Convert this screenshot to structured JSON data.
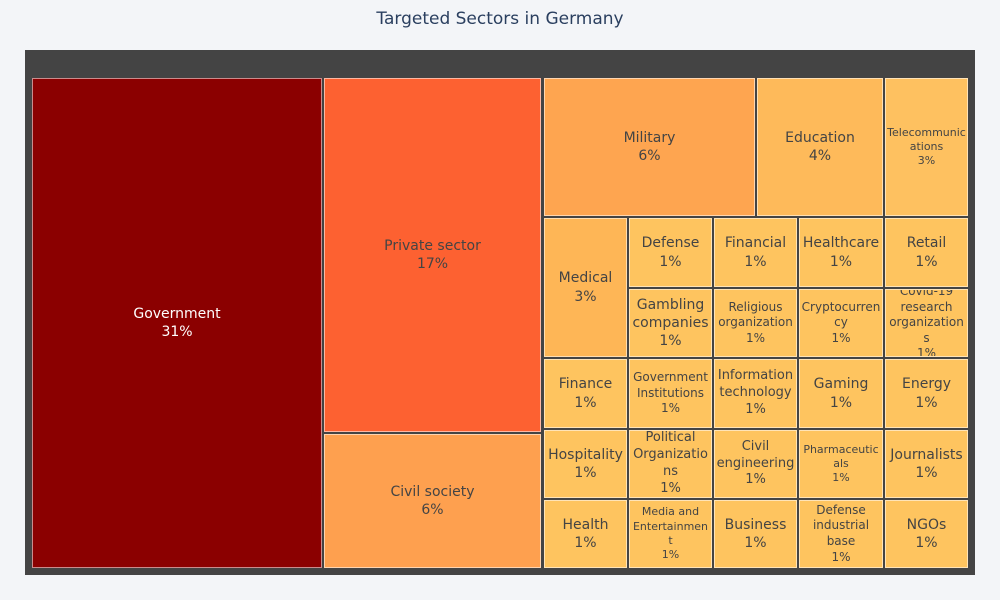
{
  "chart_data": {
    "type": "treemap",
    "title": "Targeted Sectors in Germany",
    "root_color": "#444444",
    "items": [
      {
        "label": "Government",
        "pct": "31%",
        "color": "#8b0000"
      },
      {
        "label": "Private sector",
        "pct": "17%",
        "color": "#fd6131"
      },
      {
        "label": "Civil society",
        "pct": "6%",
        "color": "#fea04f"
      },
      {
        "label": "Military",
        "pct": "6%",
        "color": "#fea550"
      },
      {
        "label": "Education",
        "pct": "4%",
        "color": "#feba5a"
      },
      {
        "label": "Telecommunications",
        "pct": "3%",
        "color": "#fec160"
      },
      {
        "label": "Medical",
        "pct": "3%",
        "color": "#feb656"
      },
      {
        "label": "Defense",
        "pct": "1%",
        "color": "#fec45f"
      },
      {
        "label": "Financial",
        "pct": "1%",
        "color": "#fec45f"
      },
      {
        "label": "Healthcare",
        "pct": "1%",
        "color": "#fec45f"
      },
      {
        "label": "Retail",
        "pct": "1%",
        "color": "#fec45f"
      },
      {
        "label": "Gambling companies",
        "pct": "1%",
        "color": "#fec45f"
      },
      {
        "label": "Religious organization",
        "pct": "1%",
        "color": "#fec45f"
      },
      {
        "label": "Cryptocurrency",
        "pct": "1%",
        "color": "#fec45f"
      },
      {
        "label": "Covid-19 research organizations",
        "pct": "1%",
        "color": "#fec45f"
      },
      {
        "label": "Finance",
        "pct": "1%",
        "color": "#fec45f"
      },
      {
        "label": "Government Institutions",
        "pct": "1%",
        "color": "#fec45f"
      },
      {
        "label": "Information technology",
        "pct": "1%",
        "color": "#fec45f"
      },
      {
        "label": "Gaming",
        "pct": "1%",
        "color": "#fec45f"
      },
      {
        "label": "Energy",
        "pct": "1%",
        "color": "#fec45f"
      },
      {
        "label": "Hospitality",
        "pct": "1%",
        "color": "#fec45f"
      },
      {
        "label": "Political Organizations",
        "pct": "1%",
        "color": "#fec45f"
      },
      {
        "label": "Civil engineering",
        "pct": "1%",
        "color": "#fec45f"
      },
      {
        "label": "Pharmaceuticals",
        "pct": "1%",
        "color": "#fec45f"
      },
      {
        "label": "Journalists",
        "pct": "1%",
        "color": "#fec45f"
      },
      {
        "label": "Health",
        "pct": "1%",
        "color": "#fec45f"
      },
      {
        "label": "Media and Entertainment",
        "pct": "1%",
        "color": "#fec45f"
      },
      {
        "label": "Business",
        "pct": "1%",
        "color": "#fec45f"
      },
      {
        "label": "Defense industrial base",
        "pct": "1%",
        "color": "#fec45f"
      },
      {
        "label": "NGOs",
        "pct": "1%",
        "color": "#fec45f"
      }
    ]
  }
}
